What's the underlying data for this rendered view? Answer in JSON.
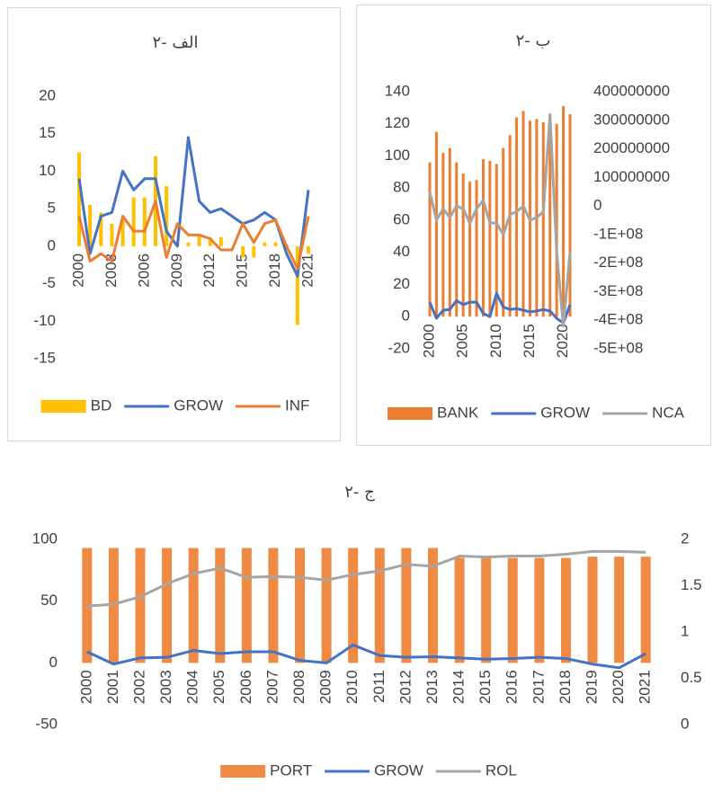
{
  "chart_data": [
    {
      "type": "combo",
      "title": "۲- الف",
      "x": [
        2000,
        2001,
        2002,
        2003,
        2004,
        2005,
        2006,
        2007,
        2008,
        2009,
        2010,
        2011,
        2012,
        2013,
        2014,
        2015,
        2016,
        2017,
        2018,
        2019,
        2020,
        2021
      ],
      "xlim": [
        2000,
        2021
      ],
      "xticks": [
        2000,
        2003,
        2006,
        2009,
        2012,
        2015,
        2018,
        2021
      ],
      "ylim": [
        -15,
        20
      ],
      "yticks": [
        -15,
        -10,
        -5,
        0,
        5,
        10,
        15,
        20
      ],
      "grid": false,
      "legend": "bottom",
      "series": [
        {
          "name": "BD",
          "type": "bar",
          "color": "#ffc000",
          "values": [
            12.5,
            5.5,
            4.5,
            3,
            3.5,
            6.5,
            6.5,
            12,
            8,
            0.5,
            0.5,
            1.5,
            1.2,
            1.2,
            0,
            -1.5,
            -1.5,
            0.5,
            0.5,
            0.3,
            -10.5,
            -1
          ]
        },
        {
          "name": "GROW",
          "type": "line",
          "color": "#4472c4",
          "values": [
            9,
            -1,
            4,
            4.5,
            10,
            7.5,
            9,
            9,
            2,
            0,
            14.5,
            6,
            4.5,
            5,
            4,
            3,
            3.5,
            4.5,
            3.5,
            -1,
            -4,
            7.5
          ]
        },
        {
          "name": "INF",
          "type": "line",
          "color": "#ed7d31",
          "values": [
            4,
            -2,
            -1,
            -2,
            4,
            2,
            2,
            6,
            -1.5,
            3,
            1.5,
            1.5,
            1,
            -0.5,
            -0.5,
            3,
            0.5,
            3,
            3.5,
            0,
            -3,
            4
          ]
        }
      ]
    },
    {
      "type": "combo",
      "title": "۲- ب",
      "x": [
        2000,
        2001,
        2002,
        2003,
        2004,
        2005,
        2006,
        2007,
        2008,
        2009,
        2010,
        2011,
        2012,
        2013,
        2014,
        2015,
        2016,
        2017,
        2018,
        2019,
        2020,
        2021
      ],
      "xlim": [
        2000,
        2021
      ],
      "xticks": [
        2000,
        2005,
        2010,
        2015,
        2020
      ],
      "ylim": [
        -20,
        140
      ],
      "yticks": [
        -20,
        0,
        20,
        40,
        60,
        80,
        100,
        120,
        140
      ],
      "y2lim": [
        -500000000,
        400000000
      ],
      "y2ticks": [
        {
          "value": -500000000,
          "label": "-5E+08"
        },
        {
          "value": -400000000,
          "label": "-4E+08"
        },
        {
          "value": -300000000,
          "label": "-3E+08"
        },
        {
          "value": -200000000,
          "label": "-2E+08"
        },
        {
          "value": -100000000,
          "label": "-1E+08"
        },
        0,
        100000000,
        200000000,
        300000000,
        400000000
      ],
      "grid": false,
      "legend": "bottom",
      "series": [
        {
          "name": "BANK",
          "type": "bar",
          "color": "#ed7d31",
          "values": [
            96,
            115,
            102,
            105,
            96,
            89,
            84,
            85,
            98,
            97,
            95,
            105,
            113,
            124,
            128,
            122,
            123,
            121,
            120,
            120,
            131,
            126
          ]
        },
        {
          "name": "GROW",
          "type": "line",
          "color": "#4472c4",
          "values": [
            9,
            -1,
            4,
            4.5,
            10,
            7.5,
            9,
            9,
            2,
            0,
            14.5,
            6,
            4.5,
            5,
            4,
            3,
            3.5,
            4.5,
            3.5,
            -1,
            -4,
            7.5
          ]
        },
        {
          "name": "NCA",
          "type": "line",
          "axis": "y2",
          "color": "#a5a5a5",
          "values": [
            50000000,
            -50000000,
            -10000000,
            -40000000,
            0,
            -10000000,
            -60000000,
            -10000000,
            20000000,
            -60000000,
            -60000000,
            -100000000,
            -30000000,
            -20000000,
            0,
            -50000000,
            -40000000,
            -20000000,
            320000000,
            -160000000,
            -420000000,
            -160000000
          ]
        }
      ]
    },
    {
      "type": "combo",
      "title": "۲- ج",
      "categories": [
        "2000",
        "2001",
        "2002",
        "2003",
        "2004",
        "2005",
        "2006",
        "2007",
        "2008",
        "2009",
        "2010",
        "2011",
        "2012",
        "2013",
        "2014",
        "2015",
        "2016",
        "2017",
        "2018",
        "2019",
        "2020",
        "2021"
      ],
      "ylim": [
        -50,
        100
      ],
      "yticks": [
        -50,
        0,
        50,
        100
      ],
      "y2lim": [
        0,
        2
      ],
      "y2ticks": [
        0,
        0.5,
        1,
        1.5,
        2
      ],
      "grid": false,
      "legend": "bottom",
      "series": [
        {
          "name": "PORT",
          "type": "bar",
          "color": "#ef8a45",
          "values": [
            93,
            93,
            93,
            93,
            93,
            93,
            93,
            93,
            93,
            93,
            93,
            93,
            93,
            93,
            85,
            85,
            85,
            85,
            85,
            86,
            86,
            86
          ]
        },
        {
          "name": "GROW",
          "type": "line",
          "color": "#4472c4",
          "values": [
            9,
            -1,
            4,
            4.5,
            10,
            7.5,
            9,
            9,
            2,
            0,
            14.5,
            6,
            4.5,
            5,
            4,
            3,
            3.5,
            4.5,
            3.5,
            -1,
            -4,
            7.5
          ]
        },
        {
          "name": "ROL",
          "type": "line",
          "axis": "y2",
          "color": "#a5a5a5",
          "values": [
            1.28,
            1.3,
            1.38,
            1.52,
            1.63,
            1.69,
            1.59,
            1.6,
            1.59,
            1.56,
            1.62,
            1.66,
            1.73,
            1.71,
            1.82,
            1.81,
            1.82,
            1.82,
            1.84,
            1.87,
            1.87,
            1.86
          ]
        }
      ]
    }
  ]
}
